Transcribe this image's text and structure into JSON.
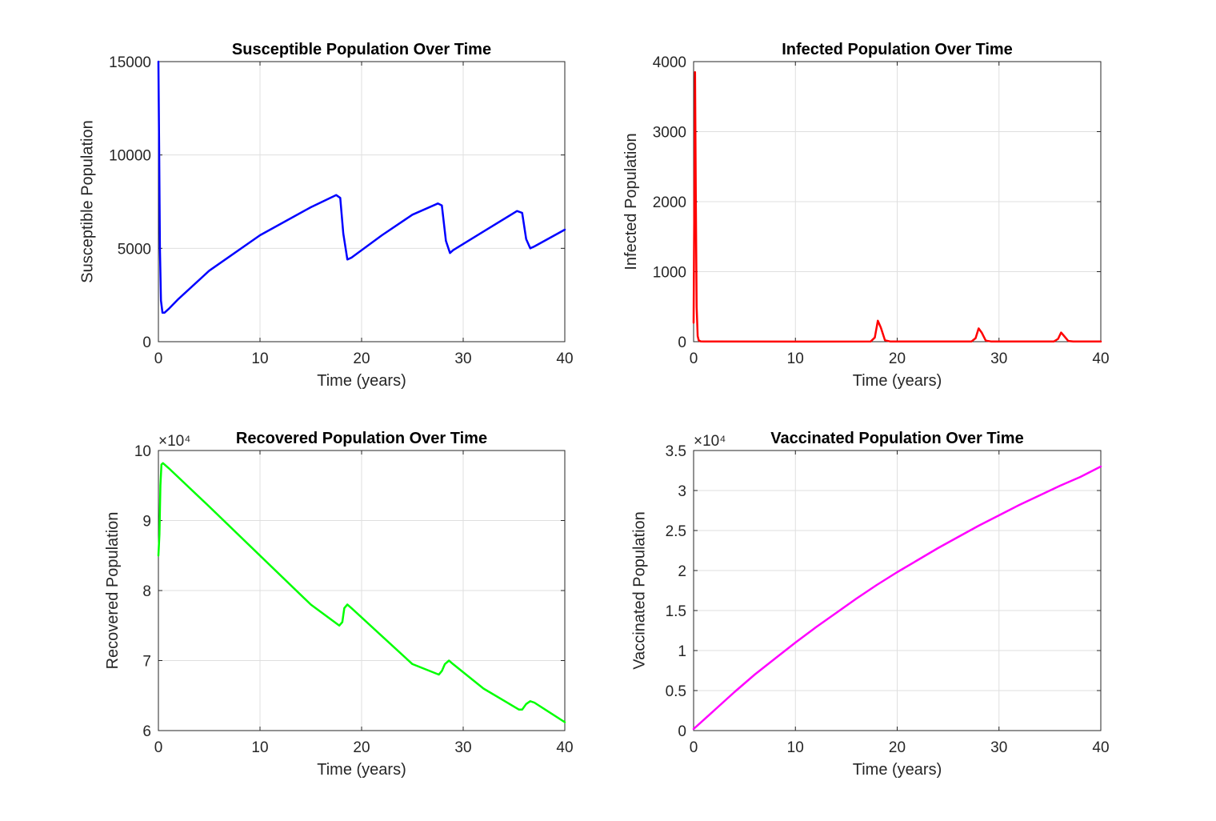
{
  "chart_data": [
    {
      "id": "susceptible",
      "type": "line",
      "title": "Susceptible Population Over Time",
      "xlabel": "Time (years)",
      "ylabel": "Susceptible Population",
      "xlim": [
        0,
        40
      ],
      "ylim": [
        0,
        15000
      ],
      "xticks": [
        "0",
        "10",
        "20",
        "30",
        "40"
      ],
      "yticks": [
        "0",
        "5000",
        "10000",
        "15000"
      ],
      "exponent_label": "",
      "grid": true,
      "color": "#0000ff",
      "series": [
        {
          "x": [
            0,
            0.08,
            0.15,
            0.25,
            0.4,
            0.6,
            1,
            2,
            5,
            10,
            15,
            17.5,
            17.9,
            18.2,
            18.6,
            19,
            22,
            25,
            27.5,
            27.9,
            28.3,
            28.7,
            29,
            32,
            35.3,
            35.8,
            36.2,
            36.6,
            37,
            40
          ],
          "y": [
            15000,
            10000,
            5000,
            2200,
            1550,
            1550,
            1750,
            2300,
            3800,
            5700,
            7200,
            7850,
            7700,
            5800,
            4400,
            4500,
            5700,
            6800,
            7400,
            7300,
            5400,
            4750,
            4900,
            5900,
            7000,
            6900,
            5500,
            5000,
            5100,
            6000
          ]
        }
      ]
    },
    {
      "id": "infected",
      "type": "line",
      "title": "Infected Population Over Time",
      "xlabel": "Time (years)",
      "ylabel": "Infected Population",
      "xlim": [
        0,
        40
      ],
      "ylim": [
        0,
        4000
      ],
      "xticks": [
        "0",
        "10",
        "20",
        "30",
        "40"
      ],
      "yticks": [
        "0",
        "1000",
        "2000",
        "3000",
        "4000"
      ],
      "exponent_label": "",
      "grid": true,
      "color": "#ff0000",
      "series": [
        {
          "x": [
            0,
            0.06,
            0.14,
            0.22,
            0.3,
            0.4,
            0.5,
            0.7,
            1,
            10,
            17.4,
            17.8,
            18.1,
            18.4,
            18.8,
            19.3,
            27.3,
            27.7,
            28,
            28.3,
            28.7,
            29.2,
            35.4,
            35.8,
            36.1,
            36.4,
            36.8,
            37.3,
            40
          ],
          "y": [
            270,
            1800,
            3850,
            2000,
            500,
            80,
            20,
            5,
            2,
            1,
            3,
            60,
            300,
            200,
            20,
            3,
            3,
            50,
            190,
            130,
            15,
            3,
            3,
            40,
            130,
            80,
            10,
            3,
            3
          ]
        }
      ]
    },
    {
      "id": "recovered",
      "type": "line",
      "title": "Recovered Population Over Time",
      "xlabel": "Time (years)",
      "ylabel": "Recovered Population",
      "xlim": [
        0,
        40
      ],
      "ylim": [
        6,
        10
      ],
      "xticks": [
        "0",
        "10",
        "20",
        "30",
        "40"
      ],
      "yticks": [
        "6",
        "7",
        "8",
        "9",
        "10"
      ],
      "exponent_label": "×10⁴",
      "grid": true,
      "color": "#00ff00",
      "series": [
        {
          "x": [
            0,
            0.1,
            0.2,
            0.3,
            0.45,
            1,
            5,
            10,
            15,
            17.8,
            18.1,
            18.3,
            18.6,
            19,
            22,
            25,
            27.6,
            27.9,
            28.2,
            28.6,
            29,
            32,
            35.5,
            35.8,
            36.2,
            36.6,
            37,
            40
          ],
          "y": [
            8.5,
            8.8,
            9.5,
            9.8,
            9.82,
            9.75,
            9.2,
            8.5,
            7.8,
            7.5,
            7.55,
            7.75,
            7.8,
            7.75,
            7.35,
            6.95,
            6.8,
            6.85,
            6.95,
            7.0,
            6.95,
            6.6,
            6.3,
            6.3,
            6.38,
            6.42,
            6.4,
            6.12
          ]
        }
      ]
    },
    {
      "id": "vaccinated",
      "type": "line",
      "title": "Vaccinated Population Over Time",
      "xlabel": "Time (years)",
      "ylabel": "Vaccinated Population",
      "xlim": [
        0,
        40
      ],
      "ylim": [
        0,
        3.5
      ],
      "xticks": [
        "0",
        "10",
        "20",
        "30",
        "40"
      ],
      "yticks": [
        "0",
        "0.5",
        "1",
        "1.5",
        "2",
        "2.5",
        "3",
        "3.5"
      ],
      "exponent_label": "×10⁴",
      "grid": true,
      "color": "#ff00ff",
      "series": [
        {
          "x": [
            0,
            2,
            4,
            6,
            8,
            10,
            12,
            14,
            16,
            18,
            20,
            22,
            24,
            26,
            28,
            30,
            32,
            34,
            36,
            38,
            40
          ],
          "y": [
            0.02,
            0.25,
            0.48,
            0.7,
            0.9,
            1.1,
            1.29,
            1.47,
            1.65,
            1.82,
            1.98,
            2.13,
            2.28,
            2.42,
            2.56,
            2.69,
            2.82,
            2.94,
            3.06,
            3.17,
            3.3
          ]
        }
      ]
    }
  ]
}
